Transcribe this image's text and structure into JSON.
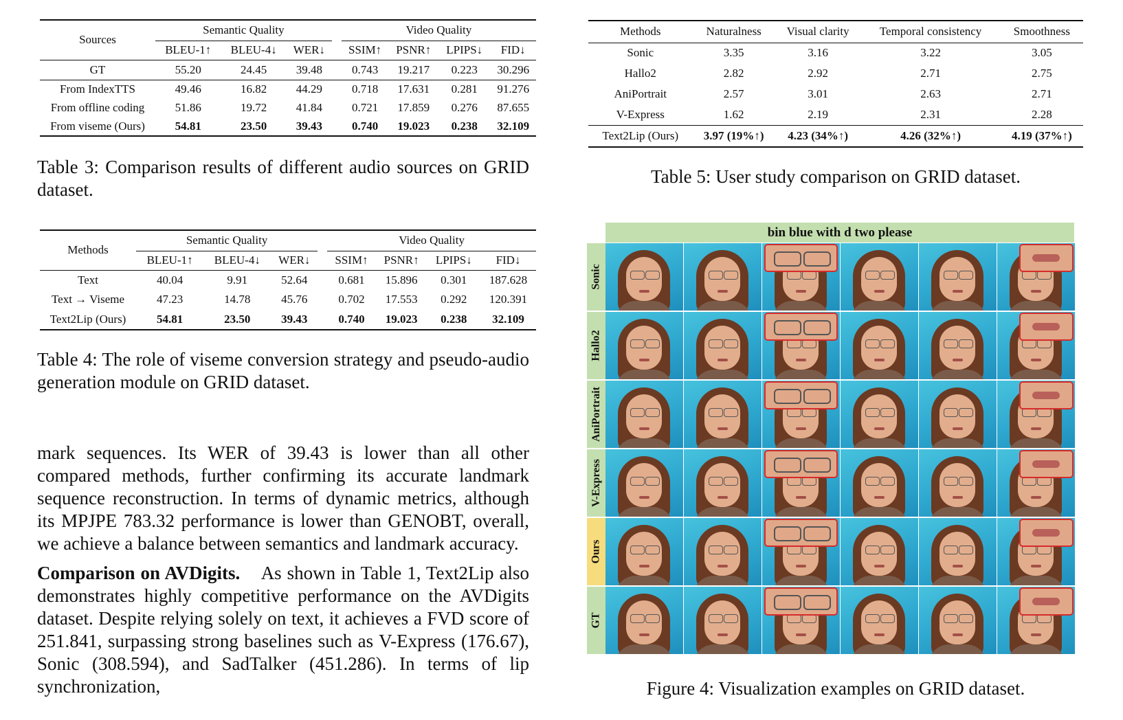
{
  "table3": {
    "group_headers": {
      "sources": "Sources",
      "semantic": "Semantic Quality",
      "video": "Video Quality"
    },
    "metrics": [
      "BLEU-1↑",
      "BLEU-4↓",
      "WER↓",
      "SSIM↑",
      "PSNR↑",
      "LPIPS↓",
      "FID↓"
    ],
    "rows": [
      {
        "source": "GT",
        "values": [
          "55.20",
          "24.45",
          "39.48",
          "0.743",
          "19.217",
          "0.223",
          "30.296"
        ]
      },
      {
        "source": "From IndexTTS",
        "values": [
          "49.46",
          "16.82",
          "44.29",
          "0.718",
          "17.631",
          "0.281",
          "91.276"
        ]
      },
      {
        "source": "From offline coding",
        "values": [
          "51.86",
          "19.72",
          "41.84",
          "0.721",
          "17.859",
          "0.276",
          "87.655"
        ]
      },
      {
        "source": "From viseme (Ours)",
        "values": [
          "54.81",
          "23.50",
          "39.43",
          "0.740",
          "19.023",
          "0.238",
          "32.109"
        ]
      }
    ],
    "caption": "Table 3: Comparison results of different audio sources on GRID dataset."
  },
  "table4": {
    "group_headers": {
      "methods": "Methods",
      "semantic": "Semantic Quality",
      "video": "Video Quality"
    },
    "metrics": [
      "BLEU-1↑",
      "BLEU-4↓",
      "WER↓",
      "SSIM↑",
      "PSNR↑",
      "LPIPS↓",
      "FID↓"
    ],
    "rows": [
      {
        "method": "Text",
        "values": [
          "40.04",
          "9.91",
          "52.64",
          "0.681",
          "15.896",
          "0.301",
          "187.628"
        ]
      },
      {
        "method": "Text → Viseme",
        "values": [
          "47.23",
          "14.78",
          "45.76",
          "0.702",
          "17.553",
          "0.292",
          "120.391"
        ]
      },
      {
        "method": "Text2Lip (Ours)",
        "values": [
          "54.81",
          "23.50",
          "39.43",
          "0.740",
          "19.023",
          "0.238",
          "32.109"
        ]
      }
    ],
    "caption": "Table 4: The role of viseme conversion strategy and pseudo-audio generation module on GRID dataset."
  },
  "table5": {
    "headers": [
      "Methods",
      "Naturalness",
      "Visual clarity",
      "Temporal consistency",
      "Smoothness"
    ],
    "rows": [
      {
        "method": "Sonic",
        "values": [
          "3.35",
          "3.16",
          "3.22",
          "3.05"
        ]
      },
      {
        "method": "Hallo2",
        "values": [
          "2.82",
          "2.92",
          "2.71",
          "2.75"
        ]
      },
      {
        "method": "AniPortrait",
        "values": [
          "2.57",
          "3.01",
          "2.63",
          "2.71"
        ]
      },
      {
        "method": "V-Express",
        "values": [
          "1.62",
          "2.19",
          "2.31",
          "2.28"
        ]
      },
      {
        "method": "Text2Lip (Ours)",
        "values": [
          "3.97 (19%↑)",
          "4.23 (34%↑)",
          "4.26 (32%↑)",
          "4.19 (37%↑)"
        ]
      }
    ],
    "caption": "Table 5: User study comparison on GRID dataset."
  },
  "figure4": {
    "sentence": "bin blue with d two please",
    "rows": [
      "Sonic",
      "Hallo2",
      "AniPortrait",
      "V-Express",
      "Ours",
      "GT"
    ],
    "row_label_colors": [
      "#c4dfaf",
      "#c4dfaf",
      "#c4dfaf",
      "#c4dfaf",
      "#f7dc7e",
      "#c4dfaf"
    ],
    "highlight_color": "#d62b2b",
    "caption": "Figure 4: Visualization examples on GRID dataset."
  },
  "body": {
    "paragraph1": "mark sequences. Its WER of 39.43 is lower than all other compared methods, further confirming its accurate landmark sequence reconstruction. In terms of dynamic metrics, although its MPJPE 783.32 performance is lower than GENOBT, overall, we achieve a balance between semantics and landmark accuracy.",
    "paragraph2_lead": "Comparison on AVDigits.",
    "paragraph2": "As shown in Table 1, Text2Lip also demonstrates highly competitive performance on the AVDigits dataset. Despite relying solely on text, it achieves a FVD score of 251.841, surpassing strong baselines such as V-Express (176.67), Sonic (308.594), and SadTalker (451.286). In terms of lip synchronization,"
  }
}
